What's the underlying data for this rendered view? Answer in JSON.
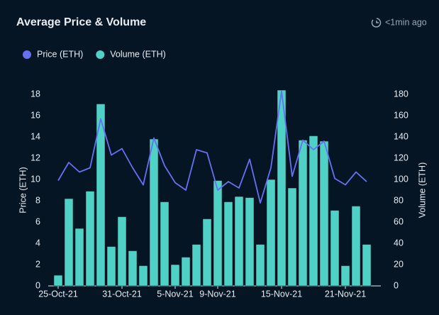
{
  "header": {
    "title": "Average Price & Volume",
    "updated": "<1min ago"
  },
  "chart_data": {
    "type": "bar-line",
    "categories": [
      "25-Oct-21",
      null,
      null,
      null,
      null,
      null,
      "31-Oct-21",
      null,
      null,
      null,
      null,
      "5-Nov-21",
      null,
      null,
      null,
      "9-Nov-21",
      null,
      null,
      null,
      null,
      null,
      "15-Nov-21",
      null,
      null,
      null,
      null,
      null,
      "21-Nov-21",
      null,
      null
    ],
    "series": [
      {
        "name": "Price (ETH)",
        "type": "line",
        "axis": "y",
        "color": "#6670f5",
        "values": [
          9.9,
          11.6,
          10.7,
          11.1,
          15.7,
          12.3,
          12.9,
          11.1,
          9.5,
          13.9,
          11.3,
          9.7,
          9.0,
          12.8,
          12.5,
          9.0,
          9.8,
          9.2,
          11.9,
          7.8,
          11.1,
          18.3,
          10.3,
          13.7,
          12.8,
          13.6,
          10.1,
          9.5,
          10.7,
          9.8
        ]
      },
      {
        "name": "Volume (ETH)",
        "type": "bar",
        "axis": "y2",
        "color": "#4fd1c5",
        "values": [
          10,
          82,
          54,
          89,
          171,
          37,
          65,
          33,
          19,
          138,
          79,
          20,
          27,
          39,
          63,
          99,
          79,
          84,
          83,
          39,
          100,
          184,
          92,
          137,
          141,
          136,
          71,
          19,
          75,
          39
        ]
      }
    ],
    "ylabel": "Price (ETH)",
    "y2label": "Volume (ETH)",
    "ylim": [
      0,
      18.5
    ],
    "yticks": [
      0,
      2,
      4,
      6,
      8,
      10,
      12,
      14,
      16,
      18
    ],
    "y2lim": [
      0,
      185
    ],
    "y2ticks": [
      0,
      20,
      40,
      60,
      80,
      100,
      120,
      140,
      160,
      180
    ],
    "legend": "top-left",
    "grid": false
  }
}
